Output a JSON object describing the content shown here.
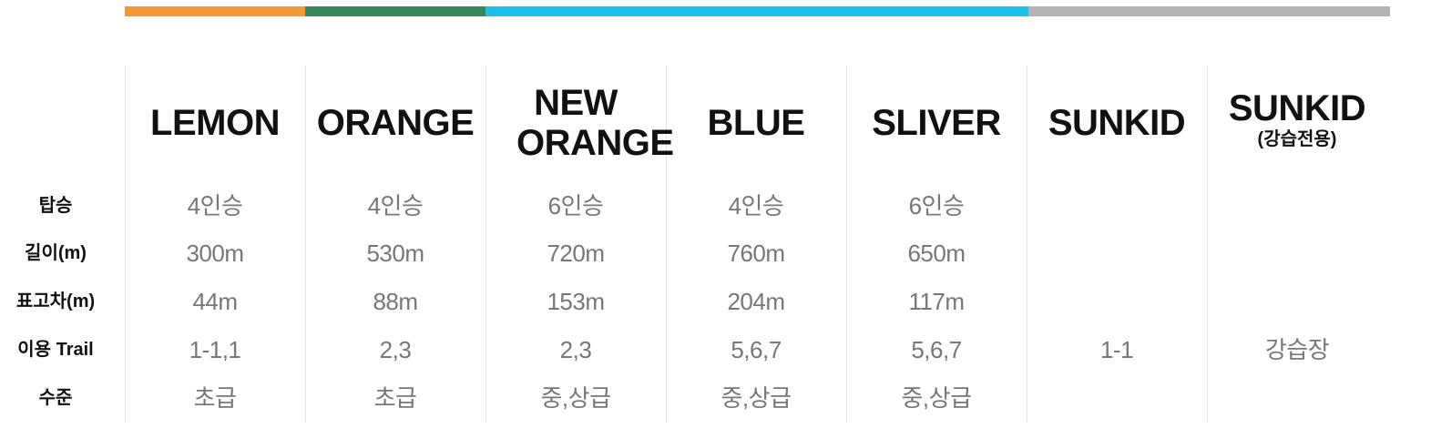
{
  "top_bar": [
    {
      "color": "#f39a36"
    },
    {
      "color": "#368a5a"
    },
    {
      "color": "#1cc0ea"
    },
    {
      "color": "#b4b4b4"
    }
  ],
  "table": {
    "row_labels": [
      "탑승",
      "길이(m)",
      "표고차(m)",
      "이용 Trail",
      "수준"
    ],
    "columns": [
      {
        "name": "LEMON",
        "sub": "",
        "values": [
          "4인승",
          "300m",
          "44m",
          "1-1,1",
          "초급"
        ]
      },
      {
        "name": "ORANGE",
        "sub": "",
        "values": [
          "4인승",
          "530m",
          "88m",
          "2,3",
          "초급"
        ]
      },
      {
        "name": "NEW ORANGE",
        "sub": "",
        "values": [
          "6인승",
          "720m",
          "153m",
          "2,3",
          "중,상급"
        ]
      },
      {
        "name": "BLUE",
        "sub": "",
        "values": [
          "4인승",
          "760m",
          "204m",
          "5,6,7",
          "중,상급"
        ]
      },
      {
        "name": "SLIVER",
        "sub": "",
        "values": [
          "6인승",
          "650m",
          "117m",
          "5,6,7",
          "중,상급"
        ]
      },
      {
        "name": "SUNKID",
        "sub": "",
        "values": [
          "",
          "",
          "",
          "1-1",
          ""
        ]
      },
      {
        "name": "SUNKID",
        "sub": "(강습전용)",
        "values": [
          "",
          "",
          "",
          "강습장",
          ""
        ]
      }
    ]
  }
}
